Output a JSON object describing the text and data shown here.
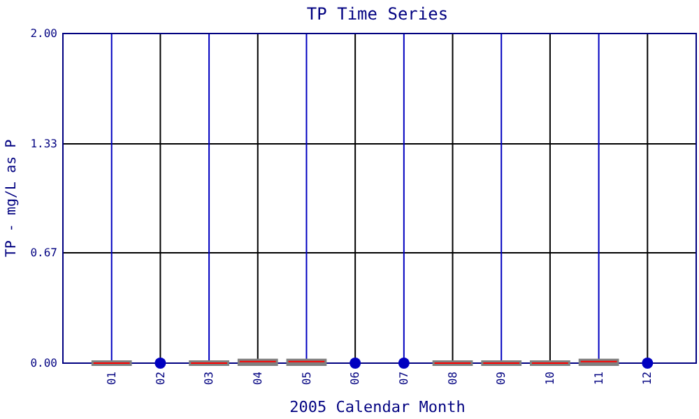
{
  "chart_data": {
    "type": "box",
    "title": "TP Time Series",
    "xlabel": "2005 Calendar Month",
    "ylabel": "TP - mg/L as P",
    "categories": [
      "01",
      "02",
      "03",
      "04",
      "05",
      "06",
      "07",
      "08",
      "09",
      "10",
      "11",
      "12"
    ],
    "ylim": [
      0,
      2
    ],
    "yticks": [
      {
        "value": 0,
        "label": "0.00"
      },
      {
        "value": 0.67,
        "label": "0.67"
      },
      {
        "value": 1.33,
        "label": "1.33"
      },
      {
        "value": 2,
        "label": "2.00"
      }
    ],
    "grid": true,
    "series": [
      {
        "color": "#808080",
        "boxes": [
          {
            "low": 0,
            "q1": 0,
            "median": 0,
            "q3": 0,
            "high": 0
          },
          null,
          {
            "low": 0,
            "q1": 0,
            "median": 0,
            "q3": 0,
            "high": 0
          },
          {
            "low": 0,
            "q1": 0,
            "median": 0.01,
            "q3": 0.01,
            "high": 0.01
          },
          {
            "low": 0,
            "q1": 0,
            "median": 0.01,
            "q3": 0.01,
            "high": 0.01
          },
          null,
          null,
          {
            "low": 0,
            "q1": 0,
            "median": 0,
            "q3": 0,
            "high": 0
          },
          {
            "low": 0,
            "q1": 0,
            "median": 0,
            "q3": 0,
            "high": 0
          },
          {
            "low": 0,
            "q1": 0,
            "median": 0,
            "q3": 0,
            "high": 0
          },
          {
            "low": 0,
            "q1": 0,
            "median": 0.01,
            "q3": 0.01,
            "high": 0.01
          },
          null
        ]
      },
      {
        "type": "scatter",
        "color": "#0000c0",
        "marker": "circle",
        "x": [
          "02",
          "06",
          "07",
          "12"
        ],
        "values": [
          0,
          0,
          0,
          0
        ]
      }
    ]
  }
}
